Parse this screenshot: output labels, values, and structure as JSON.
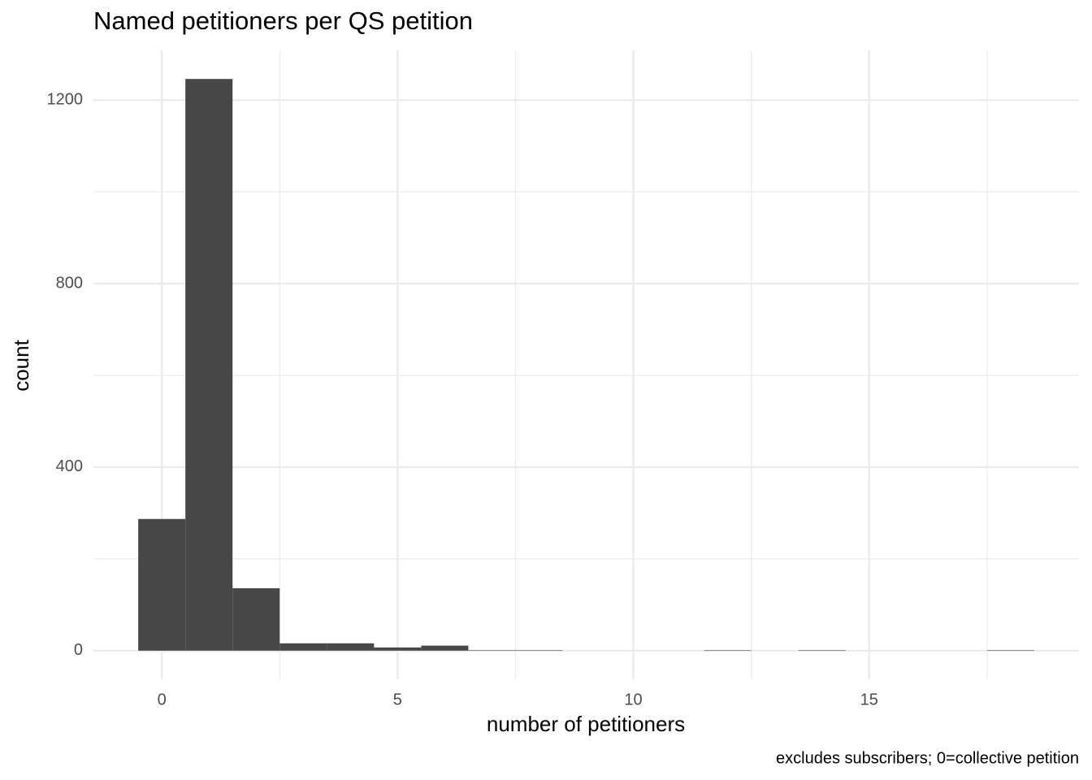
{
  "chart_data": {
    "type": "histogram",
    "title": "Named petitioners per QS petition",
    "x_label": "number of petitioners",
    "y_label": "count",
    "caption": "excludes subscribers; 0=collective petition",
    "bins": [
      -0.5,
      0.5,
      1.5,
      2.5,
      3.5,
      4.5,
      5.5,
      6.5,
      7.5,
      8.5,
      9.5,
      10.5,
      11.5,
      12.5,
      13.5,
      14.5,
      15.5,
      16.5,
      17.5,
      18.5
    ],
    "counts": [
      287,
      1246,
      136,
      16,
      16,
      7,
      11,
      1,
      1,
      0,
      0,
      0,
      1,
      0,
      1,
      0,
      0,
      0,
      1
    ],
    "color": "#474747",
    "xlim": [
      -1.45,
      19.45
    ],
    "xticks": [
      0,
      5,
      10,
      15
    ],
    "x_minor_ticks": [
      2.5,
      7.5,
      12.5,
      17.5
    ],
    "ylim": [
      -62.3,
      1308.3
    ],
    "yticks": [
      0,
      400,
      800,
      1200
    ],
    "y_minor_ticks": [
      200,
      600,
      1000
    ],
    "grid": true
  }
}
